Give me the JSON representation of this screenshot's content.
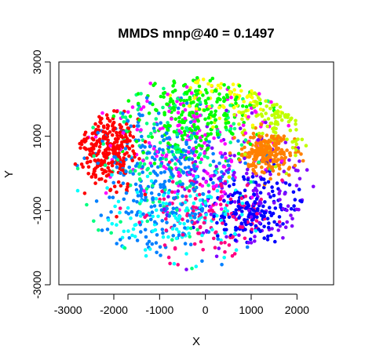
{
  "chart_data": {
    "type": "scatter",
    "title": "MMDS mnp@40 = 0.1497",
    "xlabel": "X",
    "ylabel": "Y",
    "xlim": [
      -3200,
      2800
    ],
    "ylim": [
      -3000,
      3000
    ],
    "xticks": [
      -3000,
      -2000,
      -1000,
      0,
      1000,
      2000
    ],
    "yticks": [
      -3000,
      -1000,
      1000,
      3000
    ],
    "xtick_labels": [
      "-3000",
      "-2000",
      "-1000",
      "0",
      "1000",
      "2000"
    ],
    "ytick_labels": [
      "-3000",
      "-1000",
      "1000",
      "3000"
    ],
    "grid": false,
    "legend": "none",
    "series": [
      {
        "color": "#ff0000",
        "center": [
          -2150,
          650
        ],
        "spread": [
          330,
          520
        ],
        "count": 260
      },
      {
        "color": "#ff8000",
        "center": [
          1350,
          550
        ],
        "spread": [
          280,
          260
        ],
        "count": 240
      },
      {
        "color": "#ffff00",
        "center": [
          600,
          2250
        ],
        "spread": [
          520,
          420
        ],
        "count": 60
      },
      {
        "color": "#c0ff00",
        "center": [
          1600,
          1700
        ],
        "spread": [
          500,
          550
        ],
        "count": 110
      },
      {
        "color": "#00ff00",
        "center": [
          -200,
          1700
        ],
        "spread": [
          650,
          650
        ],
        "count": 230
      },
      {
        "color": "#00ff80",
        "center": [
          -800,
          500
        ],
        "spread": [
          900,
          1000
        ],
        "count": 150
      },
      {
        "color": "#00ffff",
        "center": [
          -400,
          -1300
        ],
        "spread": [
          850,
          700
        ],
        "count": 120
      },
      {
        "color": "#0080ff",
        "center": [
          -1000,
          -200
        ],
        "spread": [
          800,
          1100
        ],
        "count": 320
      },
      {
        "color": "#0000ff",
        "center": [
          1100,
          -1000
        ],
        "spread": [
          450,
          450
        ],
        "count": 170
      },
      {
        "color": "#8000ff",
        "center": [
          1000,
          -500
        ],
        "spread": [
          900,
          900
        ],
        "count": 150
      },
      {
        "color": "#ff00ff",
        "center": [
          -200,
          900
        ],
        "spread": [
          900,
          900
        ],
        "count": 170
      },
      {
        "color": "#ff0080",
        "center": [
          200,
          -1100
        ],
        "spread": [
          700,
          600
        ],
        "count": 130
      }
    ]
  }
}
